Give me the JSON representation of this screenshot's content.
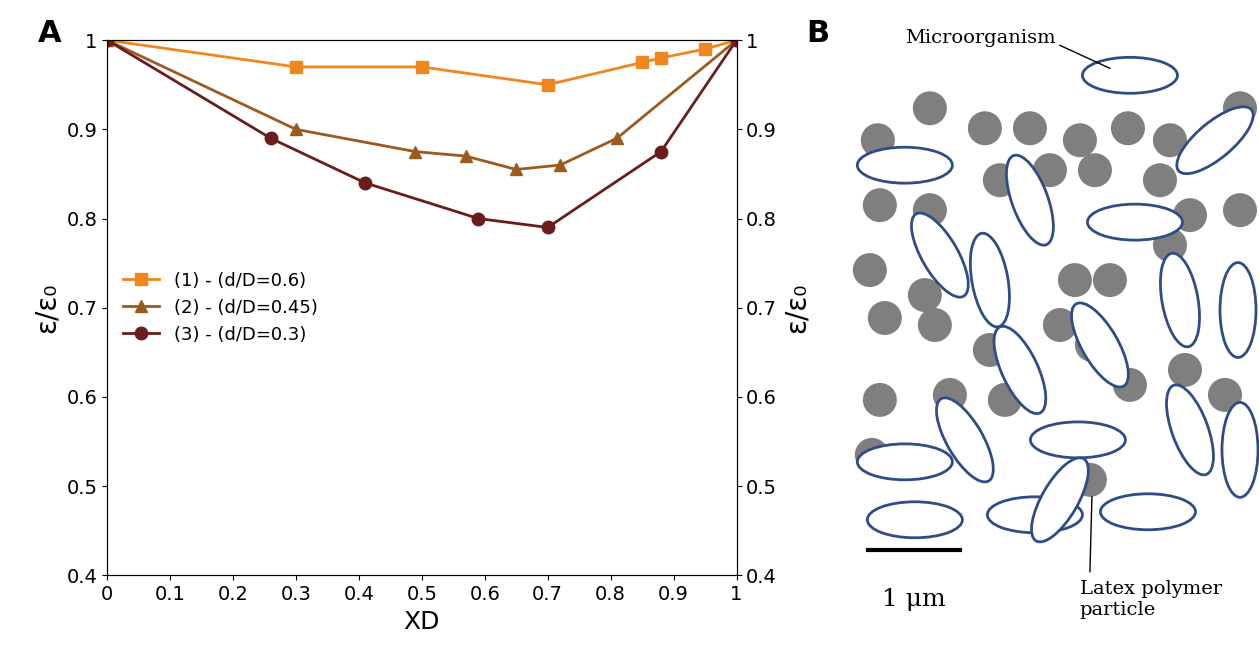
{
  "chart_data": {
    "type": "line",
    "title": "A",
    "x_label": "XD",
    "y_label": "ε/ε₀",
    "y2_label": "ε/ε₀",
    "xlim": [
      0,
      1
    ],
    "xticks": [
      0,
      0.1,
      0.2,
      0.3,
      0.4,
      0.5,
      0.6,
      0.7,
      0.8,
      0.9,
      1
    ],
    "ylim": [
      0.4,
      1
    ],
    "yticks": [
      0.4,
      0.5,
      0.6,
      0.7,
      0.8,
      0.9,
      1
    ],
    "y2lim": [
      0.4,
      1
    ],
    "y2ticks": [
      0.4,
      0.5,
      0.6,
      0.7,
      0.8,
      0.9,
      1
    ],
    "grid": false,
    "legend": "center left",
    "series": [
      {
        "name": "(1) - (d/D=0.6)",
        "color": "#f0861e",
        "marker": "square",
        "line_style": "solid",
        "x": [
          0,
          0.3,
          0.5,
          0.7,
          0.85,
          0.88,
          0.95,
          1
        ],
        "values": [
          1,
          0.97,
          0.97,
          0.95,
          0.975,
          0.98,
          0.99,
          1
        ]
      },
      {
        "name": "(2) - (d/D=0.45)",
        "color": "#9c5a1e",
        "marker": "triangle",
        "line_style": "solid",
        "x": [
          0,
          0.3,
          0.49,
          0.57,
          0.65,
          0.72,
          0.81,
          1
        ],
        "values": [
          1,
          0.9,
          0.875,
          0.87,
          0.855,
          0.86,
          0.89,
          1
        ]
      },
      {
        "name": "(3) - (d/D=0.3)",
        "color": "#6b1c1c",
        "marker": "circle",
        "line_style": "solid",
        "x": [
          0,
          0.26,
          0.41,
          0.59,
          0.7,
          0.88,
          1
        ],
        "values": [
          1,
          0.89,
          0.84,
          0.8,
          0.79,
          0.875,
          1
        ]
      }
    ]
  },
  "diagram": {
    "title": "B",
    "microorganism_label": "Microorganism",
    "particle_label": "Latex polymer\nparticle",
    "scale_bar": "1 μm"
  }
}
